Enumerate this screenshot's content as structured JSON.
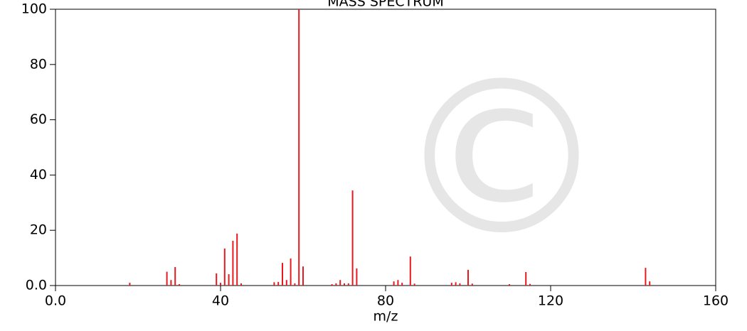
{
  "chart_data": {
    "type": "bar",
    "title": "MASS SPECTRUM",
    "x_label": "m/z",
    "watermark": "©",
    "x": [
      18,
      27,
      28,
      29,
      30,
      39,
      40,
      41,
      42,
      43,
      44,
      45,
      53,
      54,
      55,
      56,
      57,
      58,
      59,
      60,
      67,
      68,
      69,
      70,
      71,
      72,
      73,
      82,
      83,
      84,
      86,
      87,
      96,
      97,
      98,
      100,
      101,
      110,
      114,
      115,
      143,
      144
    ],
    "values": [
      1,
      5,
      2,
      6.7,
      0.5,
      4.4,
      1,
      13.4,
      4.1,
      16.2,
      18.8,
      0.8,
      1.2,
      1.3,
      8.2,
      2,
      9.8,
      0.8,
      100,
      6.9,
      0.5,
      0.8,
      2,
      0.8,
      0.8,
      34.4,
      6.2,
      1.5,
      2,
      1,
      10.5,
      0.7,
      1,
      1.2,
      0.8,
      5.7,
      0.7,
      0.5,
      4.9,
      0.6,
      6.4,
      1.5
    ],
    "color": "#e8191e",
    "xlim": [
      0,
      160
    ],
    "xticks": [
      {
        "value": 0,
        "label": "0.0"
      },
      40,
      80,
      120,
      160
    ],
    "ylim": [
      0,
      100
    ],
    "yticks": [
      {
        "value": 0,
        "label": "0.0"
      },
      20,
      40,
      60,
      80,
      100
    ]
  }
}
